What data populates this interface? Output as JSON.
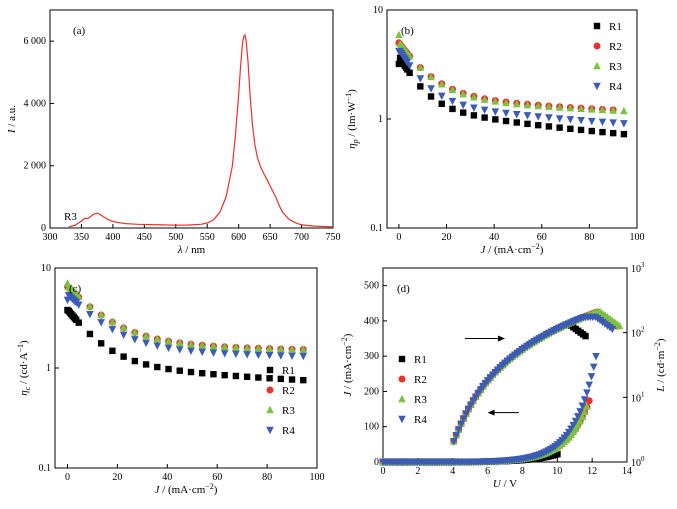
{
  "chart_data": [
    {
      "panel": "(a)",
      "type": "line",
      "xlabel_sym": "λ",
      "xlabel_unit": " / nm",
      "ylabel_sym": "I",
      "ylabel_unit": " / a.u.",
      "xlim": [
        300,
        750
      ],
      "ylim": [
        0,
        7000
      ],
      "xticks": [
        300,
        350,
        400,
        450,
        500,
        550,
        600,
        650,
        700,
        750
      ],
      "yticks": [
        0,
        2000,
        4000,
        6000
      ],
      "ytick_labels": [
        "0",
        "2 000",
        "4 000",
        "6 000"
      ],
      "annotation": "R3",
      "color": "#e8332a",
      "x": [
        330,
        340,
        350,
        355,
        360,
        365,
        370,
        375,
        380,
        385,
        390,
        395,
        400,
        410,
        420,
        440,
        460,
        480,
        500,
        520,
        540,
        550,
        560,
        570,
        580,
        590,
        595,
        600,
        603,
        606,
        608,
        610,
        612,
        615,
        618,
        622,
        626,
        630,
        635,
        640,
        645,
        650,
        655,
        660,
        665,
        670,
        680,
        690,
        700,
        720,
        750
      ],
      "y": [
        40,
        90,
        220,
        310,
        300,
        380,
        450,
        480,
        430,
        360,
        300,
        250,
        210,
        170,
        140,
        120,
        110,
        100,
        90,
        95,
        120,
        160,
        260,
        500,
        1000,
        2000,
        3000,
        4300,
        5200,
        5900,
        6150,
        6200,
        6000,
        5300,
        4300,
        3300,
        2650,
        2250,
        1950,
        1750,
        1550,
        1350,
        1150,
        950,
        700,
        500,
        280,
        170,
        100,
        60,
        40
      ]
    },
    {
      "panel": "(b)",
      "type": "scatter",
      "scale": "log-y",
      "xlabel_sym": "J",
      "xlabel_unit": " / (mA·cm",
      "ylabel_sym": "η",
      "ylabel_sub": "p",
      "ylabel_unit": " / (lm·W",
      "xlim": [
        -5,
        100
      ],
      "ylim": [
        0.1,
        10
      ],
      "xticks": [
        0,
        20,
        40,
        60,
        80,
        100
      ],
      "yticks": [
        0.1,
        1,
        10
      ],
      "ytick_labels": [
        "0.1",
        "1",
        "10"
      ],
      "legend": [
        "R1",
        "R2",
        "R3",
        "R4"
      ],
      "series": [
        {
          "name": "R1",
          "marker": "square",
          "color": "#000000",
          "a": 2.5,
          "b": 0.8,
          "k": 0.13,
          "c": 0.5,
          "max": 95,
          "y0": 3.2
        },
        {
          "name": "R2",
          "marker": "circle",
          "color": "#e8332a",
          "a": 3.3,
          "b": 0.7,
          "k": 0.1,
          "c": 1.0,
          "max": 92,
          "y0": 5.0
        },
        {
          "name": "R3",
          "marker": "triangle-up",
          "color": "#7cc242",
          "a": 3.4,
          "b": 0.65,
          "k": 0.1,
          "c": 1.0,
          "max": 98,
          "y0": 5.9
        },
        {
          "name": "R4",
          "marker": "triangle-down",
          "color": "#3b5bb5",
          "a": 2.9,
          "b": 0.75,
          "k": 0.12,
          "c": 0.7,
          "max": 95,
          "y0": 4.2
        }
      ]
    },
    {
      "panel": "(c)",
      "type": "scatter",
      "scale": "log-y",
      "xlabel_sym": "J",
      "xlabel_unit": " / (mA·cm",
      "ylabel_sym": "η",
      "ylabel_sub": "c",
      "ylabel_unit": " / (cd·A",
      "xlim": [
        -5,
        100
      ],
      "ylim": [
        0.1,
        10
      ],
      "xticks": [
        0,
        20,
        40,
        60,
        80,
        100
      ],
      "yticks": [
        0.1,
        1,
        10
      ],
      "ytick_labels": [
        "0.1",
        "1",
        "10"
      ],
      "legend": [
        "R1",
        "R2",
        "R3",
        "R4"
      ],
      "series": [
        {
          "name": "R1",
          "marker": "square",
          "color": "#000000",
          "a": 2.7,
          "b": 0.55,
          "k": 0.1,
          "c": 0.6,
          "max": 95,
          "y0": 3.8
        },
        {
          "name": "R2",
          "marker": "circle",
          "color": "#e8332a",
          "a": 4.7,
          "b": 0.45,
          "k": 0.08,
          "c": 1.4,
          "max": 96,
          "y0": 6.5
        },
        {
          "name": "R3",
          "marker": "triangle-up",
          "color": "#7cc242",
          "a": 4.8,
          "b": 0.45,
          "k": 0.08,
          "c": 1.4,
          "max": 98,
          "y0": 7.0
        },
        {
          "name": "R4",
          "marker": "triangle-down",
          "color": "#3b5bb5",
          "a": 3.9,
          "b": 0.4,
          "k": 0.08,
          "c": 1.2,
          "max": 95,
          "y0": 4.8
        }
      ]
    },
    {
      "panel": "(d)",
      "type": "scatter",
      "xlabel_sym": "U",
      "xlabel_unit": " / V",
      "ylabel_sym": "J",
      "ylabel_unit": " / (mA·cm",
      "y2label_sym": "L",
      "y2label_unit": " / (cd·m",
      "xlim": [
        0,
        14
      ],
      "ylim": [
        0,
        550
      ],
      "y2lim": [
        1,
        1000
      ],
      "y2scale": "log",
      "xticks": [
        0,
        2,
        4,
        6,
        8,
        10,
        12,
        14
      ],
      "yticks": [
        0,
        100,
        200,
        300,
        400,
        500
      ],
      "y2ticks": [
        1,
        10,
        100,
        1000
      ],
      "y2tick_exp": [
        "0",
        "1",
        "2",
        "3"
      ],
      "legend": [
        "R1",
        "R2",
        "R3",
        "R4"
      ],
      "series_J": [
        {
          "name": "R1",
          "marker": "square",
          "color": "#000000",
          "v0": 3.9,
          "p": 0.22,
          "vmax": 10.1
        },
        {
          "name": "R2",
          "marker": "circle",
          "color": "#e8332a",
          "v0": 4.4,
          "p": 0.25,
          "vmax": 11.85
        },
        {
          "name": "R3",
          "marker": "triangle-up",
          "color": "#7cc242",
          "v0": 4.4,
          "p": 0.25,
          "vmax": 11.8
        },
        {
          "name": "R4",
          "marker": "triangle-down",
          "color": "#3b5bb5",
          "v0": 4.4,
          "p": 0.26,
          "vmax": 12.3
        }
      ],
      "series_L": [
        {
          "name": "R1",
          "marker": "square",
          "color": "#000000",
          "vmax": 11.7,
          "peakV": 10.6,
          "peakL": 140
        },
        {
          "name": "R2",
          "marker": "circle",
          "color": "#e8332a",
          "vmax": 13.5,
          "peakV": 12.3,
          "peakL": 210
        },
        {
          "name": "R3",
          "marker": "triangle-up",
          "color": "#7cc242",
          "vmax": 13.7,
          "peakV": 12.4,
          "peakL": 215
        },
        {
          "name": "R4",
          "marker": "triangle-down",
          "color": "#3b5bb5",
          "vmax": 13.2,
          "peakV": 12.2,
          "peakL": 175
        }
      ]
    }
  ]
}
